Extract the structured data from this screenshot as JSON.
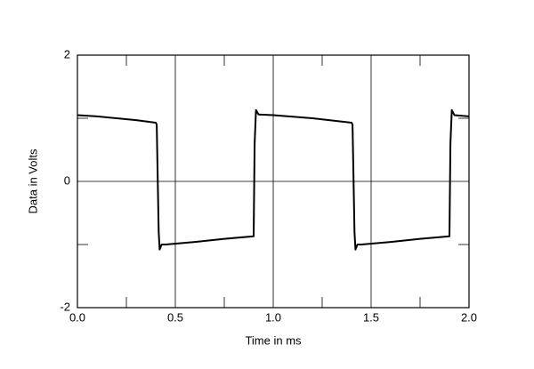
{
  "chart_data": {
    "type": "line",
    "x_label": "Time in ms",
    "y_label": "Data in Volts",
    "x": [
      0,
      0.1,
      0.2,
      0.3,
      0.4,
      0.405,
      0.415,
      0.42,
      0.43,
      0.45,
      0.6,
      0.75,
      0.9,
      0.905,
      0.912,
      0.925,
      1.0,
      1.2,
      1.4,
      1.405,
      1.415,
      1.42,
      1.43,
      1.45,
      1.6,
      1.75,
      1.9,
      1.905,
      1.912,
      1.925,
      2.0
    ],
    "series": [
      {
        "color": "#000000",
        "values": [
          1.05,
          1.03,
          1.0,
          0.97,
          0.93,
          0.9,
          -0.8,
          -1.08,
          -1.0,
          -1.0,
          -0.96,
          -0.91,
          -0.87,
          0.6,
          1.13,
          1.06,
          1.05,
          1.0,
          0.93,
          0.9,
          -0.8,
          -1.08,
          -1.0,
          -1.0,
          -0.96,
          -0.91,
          -0.87,
          0.6,
          1.13,
          1.05,
          1.03
        ]
      }
    ],
    "xlim": [
      0,
      2
    ],
    "ylim": [
      -2,
      2
    ],
    "xticks": [
      {
        "value": 0,
        "label": "0.0"
      },
      0.5,
      {
        "value": 1,
        "label": "1.0"
      },
      1.5,
      {
        "value": 2,
        "label": "2.0"
      }
    ],
    "yticks": [
      -2,
      0,
      2
    ],
    "x_minor_ticks": [
      0.25,
      0.75,
      1.25,
      1.75
    ],
    "y_minor_ticks": [
      -1,
      1
    ],
    "grid": true
  }
}
